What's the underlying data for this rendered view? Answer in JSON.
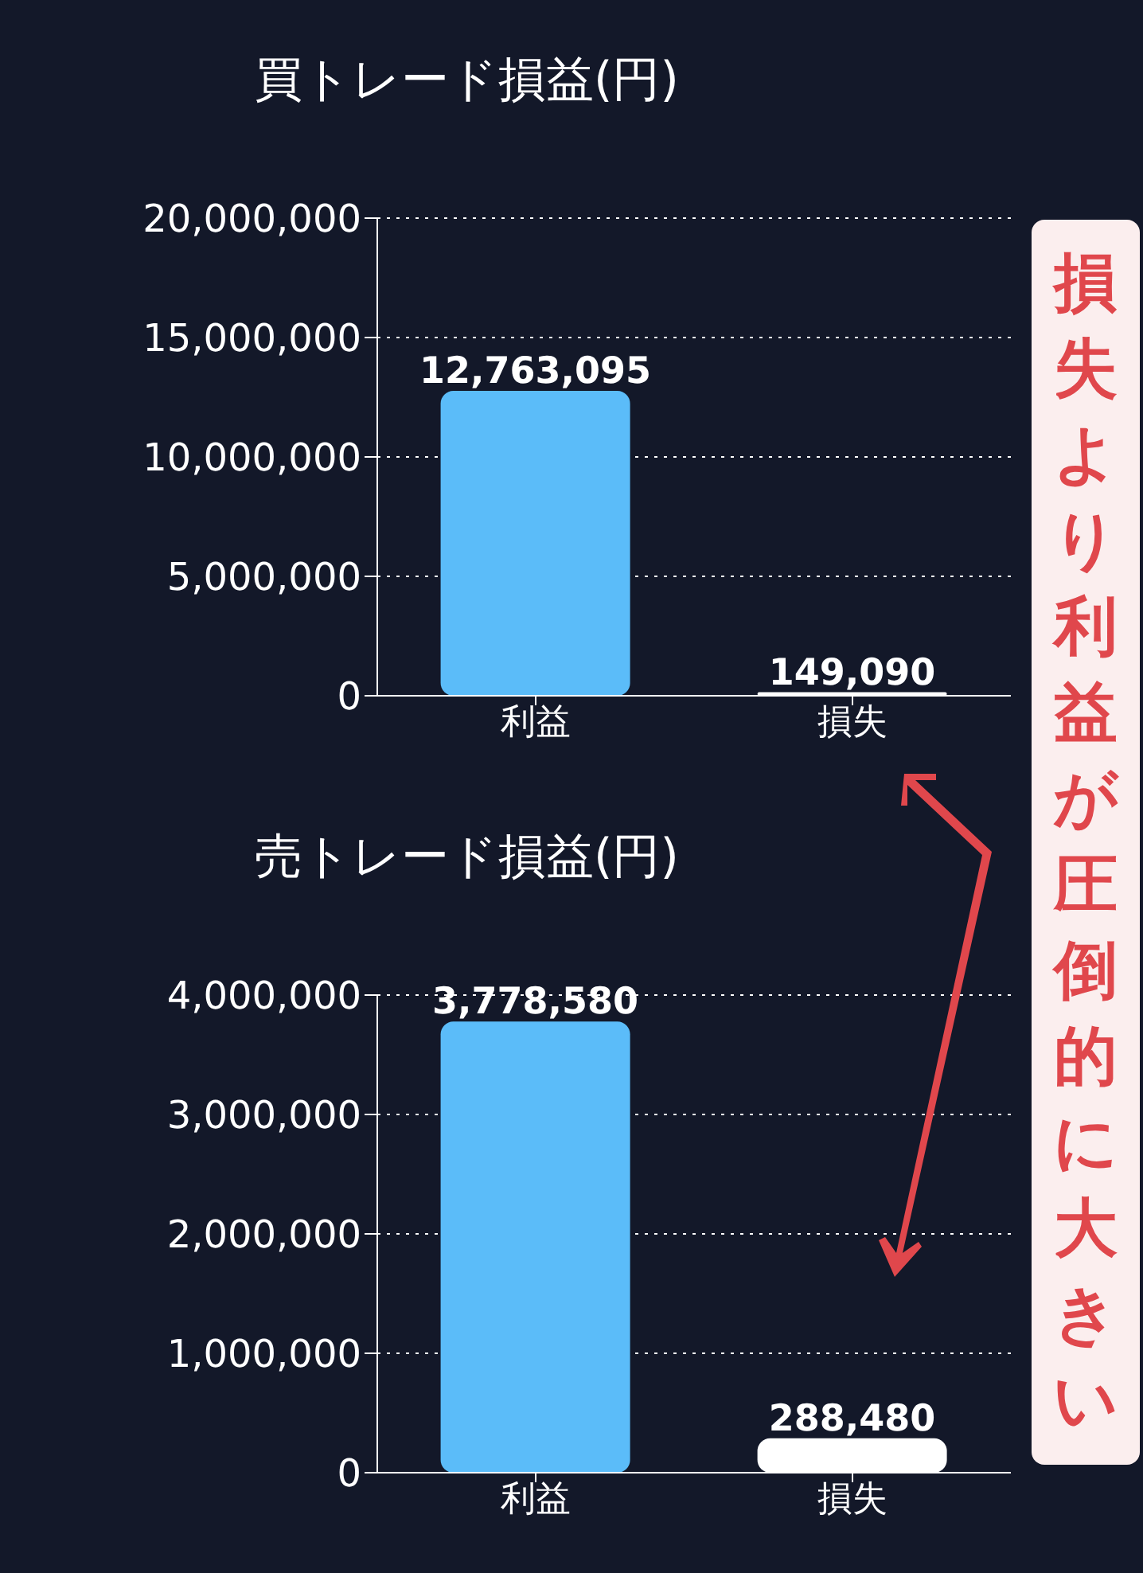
{
  "chart_data": [
    {
      "type": "bar",
      "title": "買トレード損益(円)",
      "categories": [
        "利益",
        "損失"
      ],
      "values": [
        12763095,
        149090
      ],
      "value_labels": [
        "12,763,095",
        "149,090"
      ],
      "colors": [
        "#5bbcf9",
        "#ffffff"
      ],
      "ylim": [
        0,
        20000000
      ],
      "yticks": [
        {
          "value": 0,
          "label": "0"
        },
        {
          "value": 5000000,
          "label": "5,000,000"
        },
        {
          "value": 10000000,
          "label": "10,000,000"
        },
        {
          "value": 15000000,
          "label": "15,000,000"
        },
        {
          "value": 20000000,
          "label": "20,000,000"
        }
      ],
      "grid": "y"
    },
    {
      "type": "bar",
      "title": "売トレード損益(円)",
      "categories": [
        "利益",
        "損失"
      ],
      "values": [
        3778580,
        288480
      ],
      "value_labels": [
        "3,778,580",
        "288,480"
      ],
      "colors": [
        "#5bbcf9",
        "#ffffff"
      ],
      "ylim": [
        0,
        4000000
      ],
      "yticks": [
        {
          "value": 0,
          "label": "0"
        },
        {
          "value": 1000000,
          "label": "1,000,000"
        },
        {
          "value": 2000000,
          "label": "2,000,000"
        },
        {
          "value": 3000000,
          "label": "3,000,000"
        },
        {
          "value": 4000000,
          "label": "4,000,000"
        }
      ],
      "grid": "y",
      "annotations": [
        "損失より利益が圧倒的に大きい"
      ]
    }
  ]
}
